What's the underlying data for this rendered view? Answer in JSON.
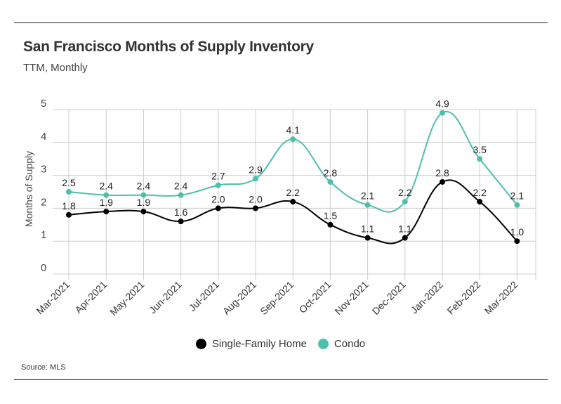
{
  "title": "San Francisco Months of Supply Inventory",
  "subtitle": "TTM, Monthly",
  "source": "Source:  MLS",
  "colors": {
    "single_family": "#000000",
    "condo": "#4dbfad",
    "grid": "#cccccc"
  },
  "chart_data": {
    "type": "line",
    "title": "San Francisco Months of Supply Inventory",
    "subtitle": "TTM, Monthly",
    "xlabel": "",
    "ylabel": "Months of Supply",
    "ylim": [
      0,
      5
    ],
    "yticks": [
      0,
      1,
      2,
      3,
      4,
      5
    ],
    "grid": true,
    "legend_position": "bottom-center",
    "categories": [
      "Mar-2021",
      "Apr-2021",
      "May-2021",
      "Jun-2021",
      "Jul-2021",
      "Aug-2021",
      "Sep-2021",
      "Oct-2021",
      "Nov-2021",
      "Dec-2021",
      "Jan-2022",
      "Feb-2022",
      "Mar-2022"
    ],
    "series": [
      {
        "name": "Single-Family Home",
        "labels": [
          "1.8",
          "1.9",
          "1.9",
          "1.6",
          "2.0",
          "2.0",
          "2.2",
          "1.5",
          "1.1",
          "1.1",
          "2.8",
          "2.2",
          "1.0"
        ],
        "values": [
          1.8,
          1.9,
          1.9,
          1.6,
          2.0,
          2.0,
          2.2,
          1.5,
          1.1,
          1.1,
          2.8,
          2.2,
          1.0
        ]
      },
      {
        "name": "Condo",
        "labels": [
          "2.5",
          "2.4",
          "2.4",
          "2.4",
          "2.7",
          "2.9",
          "4.1",
          "2.8",
          "2.1",
          "2.2",
          "4.9",
          "3.5",
          "2.1"
        ],
        "values": [
          2.5,
          2.4,
          2.4,
          2.4,
          2.7,
          2.9,
          4.1,
          2.8,
          2.1,
          2.2,
          4.9,
          3.5,
          2.1
        ]
      }
    ]
  }
}
